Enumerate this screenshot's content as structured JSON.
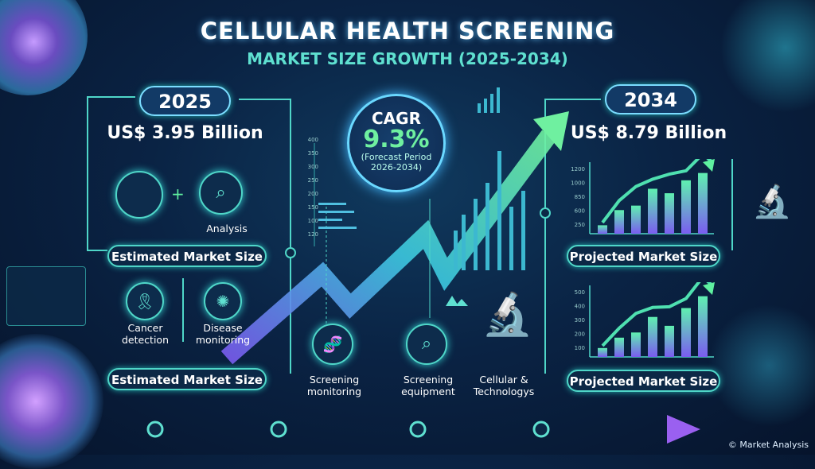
{
  "header": {
    "title": "CELLULAR HEALTH SCREENING",
    "subtitle": "MARKET SIZE GROWTH (2025-2034)"
  },
  "left": {
    "year": "2025",
    "value": "US$ 3.95 Billion",
    "plus": "+",
    "analysis_label": "Analysis",
    "estimated_label_1": "Estimated Market Size",
    "cancer_label": "Cancer detection",
    "disease_label": "Disease monitoring",
    "estimated_label_2": "Estimated Market Size"
  },
  "center": {
    "cagr_label": "CAGR",
    "cagr_value": "9.3%",
    "forecast_line1": "(Forecast Period",
    "forecast_line2": "2026-2034)",
    "axis_ticks": [
      "400",
      "350",
      "300",
      "250",
      "200",
      "150",
      "100",
      "120"
    ],
    "items": [
      {
        "label": "Screening monitoring"
      },
      {
        "label": "Screening equipment"
      },
      {
        "label": "Cellular & Technologys"
      }
    ]
  },
  "right": {
    "year": "2034",
    "value": "US$ 8.79 Billion",
    "projected_label_1": "Projected Market Size",
    "projected_label_2": "Projected Market Size"
  },
  "chart_data": [
    {
      "type": "bar",
      "yticks": [
        "1200",
        "1000",
        "850",
        "600",
        "250"
      ],
      "values": [
        150,
        420,
        500,
        800,
        720,
        950,
        1080
      ],
      "trend_arrow": true
    },
    {
      "type": "bar",
      "yticks": [
        "500",
        "400",
        "300",
        "200",
        "100"
      ],
      "values": [
        60,
        130,
        165,
        270,
        210,
        330,
        410
      ],
      "trend_arrow": true
    }
  ],
  "footer": {
    "copyright": "© Market Analysis"
  },
  "colors": {
    "background": "#0a2344",
    "accent_teal": "#4fd6c8",
    "accent_green": "#5ff0a0",
    "accent_purple": "#8a5cf0"
  }
}
